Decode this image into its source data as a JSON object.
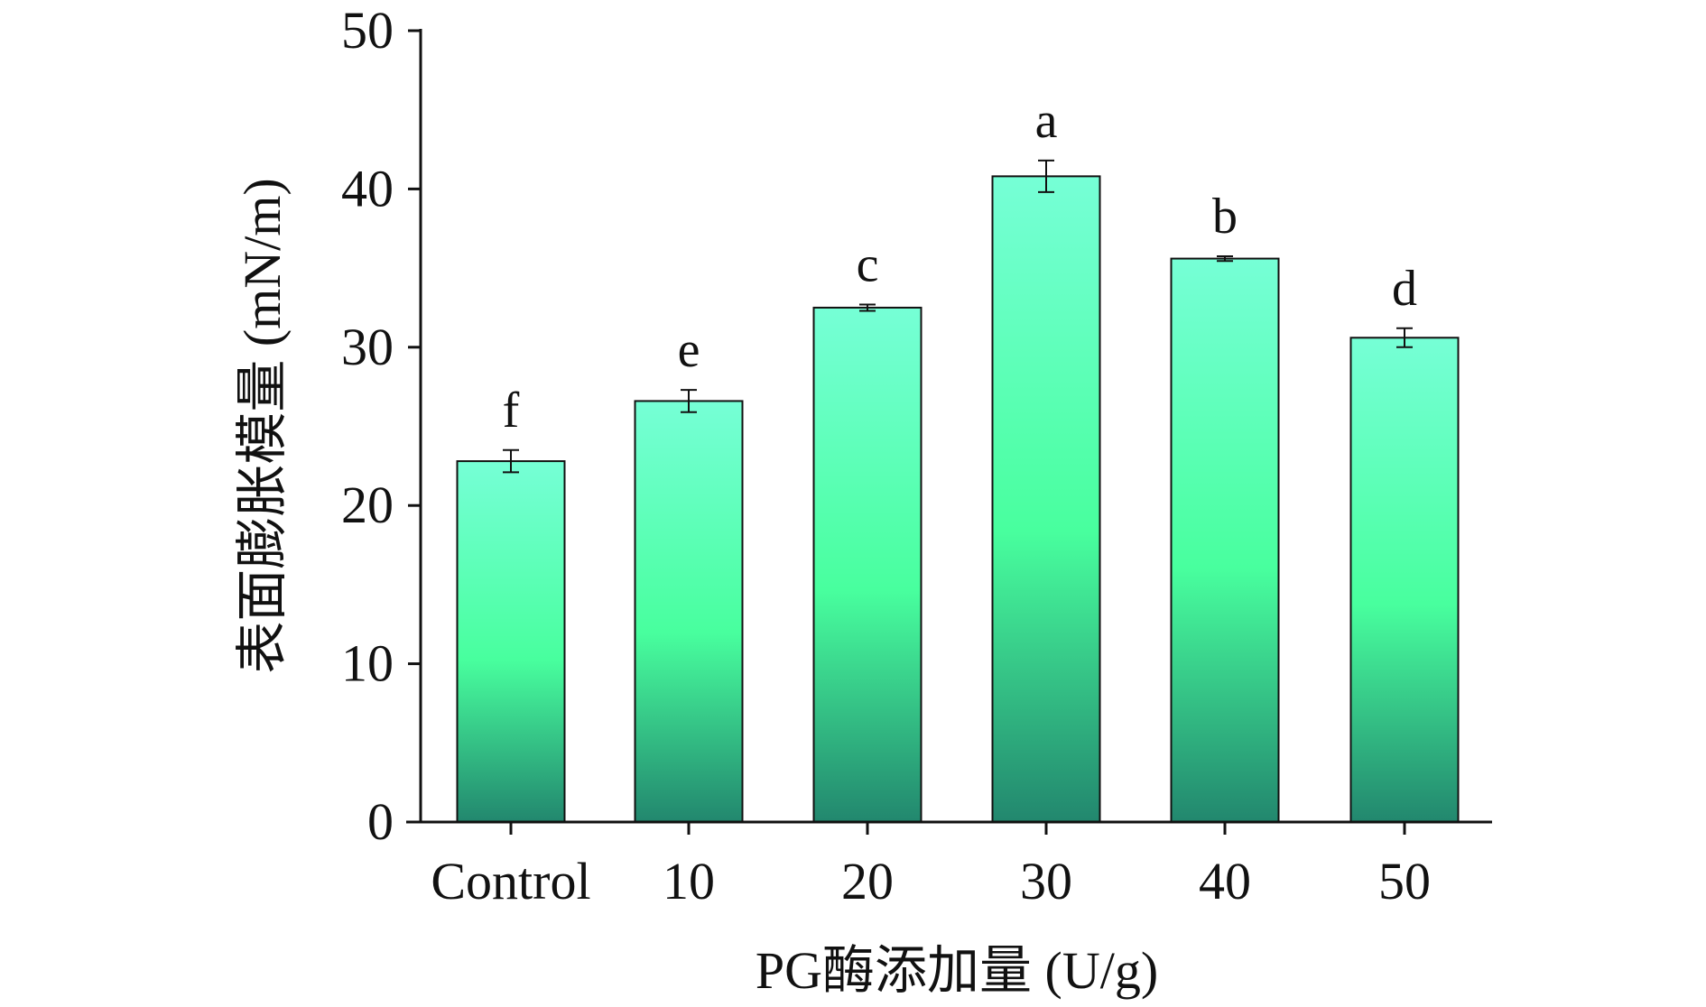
{
  "chart_data": {
    "type": "bar",
    "title": "",
    "xlabel": "PG酶添加量 (U/g)",
    "ylabel": "表面膨胀模量 (mN/m)",
    "categories": [
      "Control",
      "10",
      "20",
      "30",
      "40",
      "50"
    ],
    "values": [
      22.8,
      26.6,
      32.5,
      40.8,
      35.6,
      30.6
    ],
    "errors": [
      0.7,
      0.7,
      0.2,
      1.0,
      0.15,
      0.6
    ],
    "significance_letters": [
      "f",
      "e",
      "c",
      "a",
      "b",
      "d"
    ],
    "ylim": [
      0,
      50
    ],
    "yticks": [
      "0",
      "10",
      "20",
      "30",
      "40",
      "50"
    ],
    "grid": false,
    "colors": {
      "top": "#76ffd6",
      "middle": "#48ff9e",
      "bottom": "#22876e"
    }
  }
}
